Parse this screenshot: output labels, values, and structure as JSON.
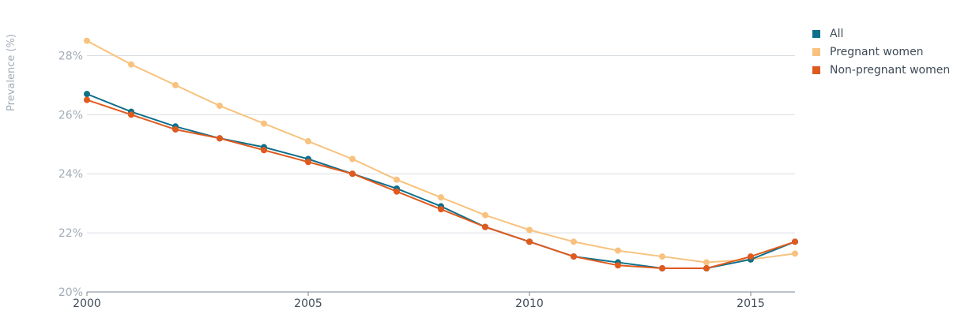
{
  "chart_data": {
    "type": "line",
    "ylabel": "Prevalence (%)",
    "xlabel": "",
    "x": [
      2000,
      2001,
      2002,
      2003,
      2004,
      2005,
      2006,
      2007,
      2008,
      2009,
      2010,
      2011,
      2012,
      2013,
      2014,
      2015,
      2016
    ],
    "xlim": [
      2000,
      2016
    ],
    "ylim": [
      20,
      29
    ],
    "x_ticks": [
      2000,
      2005,
      2010,
      2015
    ],
    "x_tick_labels": [
      "2000",
      "2005",
      "2010",
      "2015"
    ],
    "y_ticks": [
      20,
      22,
      24,
      26,
      28
    ],
    "y_tick_labels": [
      "20%",
      "22%",
      "24%",
      "26%",
      "28%"
    ],
    "grid": true,
    "legend_position": "top-right",
    "series": [
      {
        "name": "All",
        "color": "#0e6f8a",
        "values": [
          26.7,
          26.1,
          25.6,
          25.2,
          24.9,
          24.5,
          24.0,
          23.5,
          22.9,
          22.2,
          21.7,
          21.2,
          21.0,
          20.8,
          20.8,
          21.1,
          21.7
        ]
      },
      {
        "name": "Pregnant women",
        "color": "#f8c27e",
        "values": [
          28.5,
          27.7,
          27.0,
          26.3,
          25.7,
          25.1,
          24.5,
          23.8,
          23.2,
          22.6,
          22.1,
          21.7,
          21.4,
          21.2,
          21.0,
          21.1,
          21.3
        ]
      },
      {
        "name": "Non-pregnant women",
        "color": "#e05a1e",
        "values": [
          26.5,
          26.0,
          25.5,
          25.2,
          24.8,
          24.4,
          24.0,
          23.4,
          22.8,
          22.2,
          21.7,
          21.2,
          20.9,
          20.8,
          20.8,
          21.2,
          21.7
        ]
      }
    ]
  }
}
